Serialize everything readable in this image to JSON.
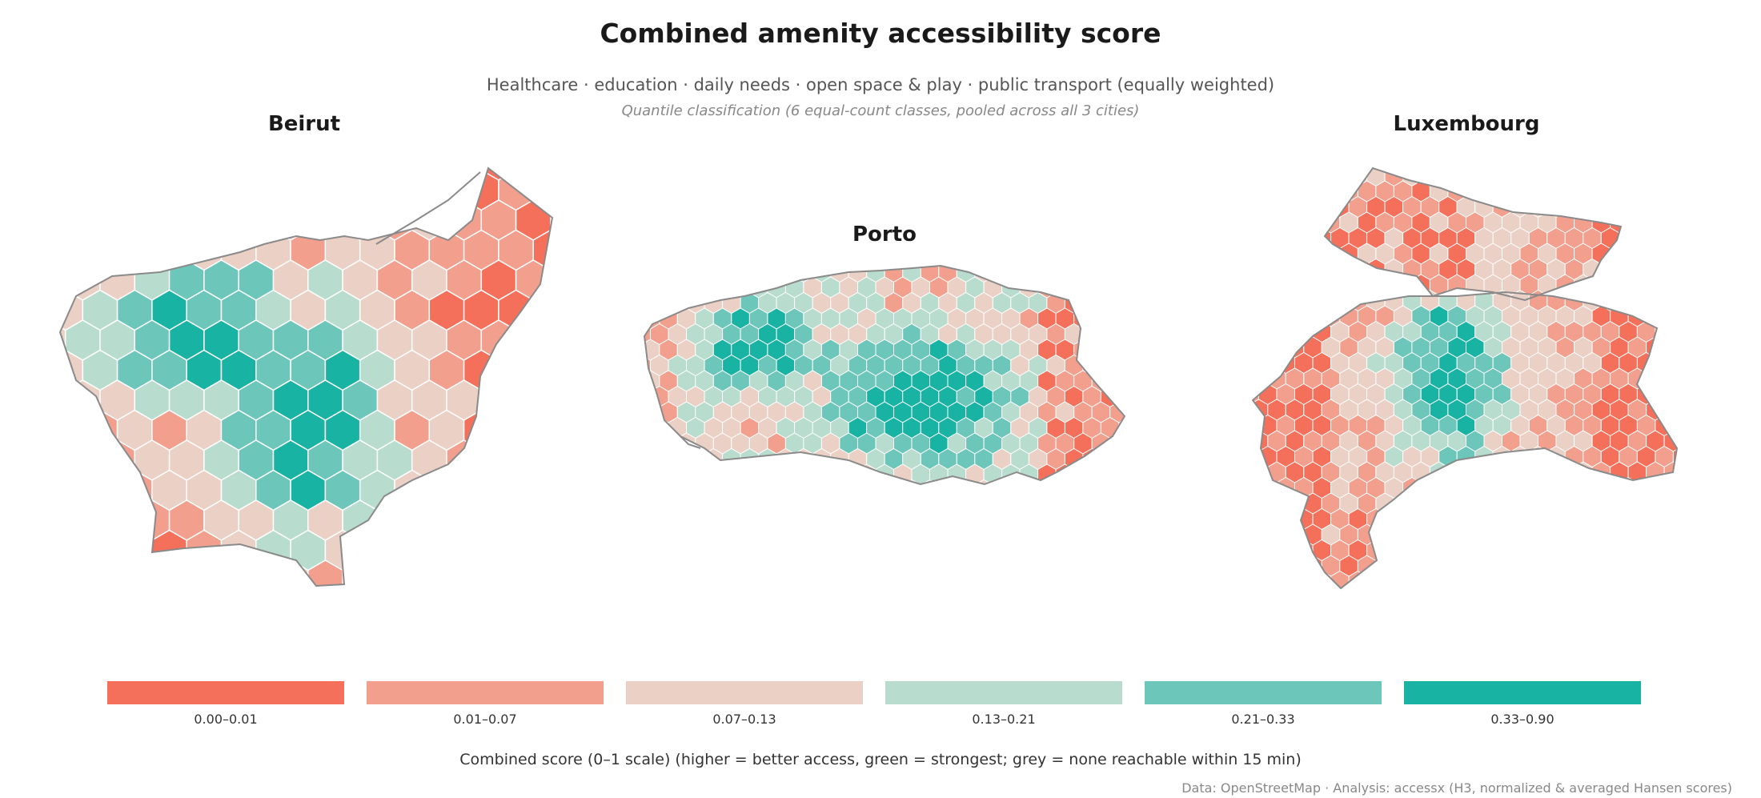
{
  "title": "Combined amenity accessibility score",
  "subtitle": "Healthcare · education · daily needs · open space & play · public transport (equally weighted)",
  "note": "Quantile classification (6 equal-count classes, pooled across all 3 cities)",
  "cities": [
    {
      "name": "Beirut"
    },
    {
      "name": "Porto"
    },
    {
      "name": "Luxembourg"
    }
  ],
  "legend": {
    "classes": [
      {
        "label": "0.00–0.01",
        "color": "#f5705a"
      },
      {
        "label": "0.01–0.07",
        "color": "#f29f8e"
      },
      {
        "label": "0.07–0.13",
        "color": "#ebd0c5"
      },
      {
        "label": "0.13–0.21",
        "color": "#b8dccd"
      },
      {
        "label": "0.21–0.33",
        "color": "#6cc6b9"
      },
      {
        "label": "0.33–0.90",
        "color": "#19b3a4"
      }
    ],
    "caption": "Combined score (0–1 scale)  (higher = better access, green = strongest; grey = none reachable within 15 min)"
  },
  "source": "Data: OpenStreetMap  ·  Analysis: accessx (H3, normalized & averaged Hansen scores)"
}
